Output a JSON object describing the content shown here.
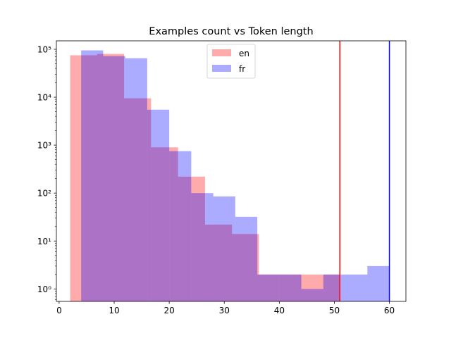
{
  "chart_data": {
    "type": "bar",
    "subtype": "overlapping-histogram",
    "title": "Examples count vs Token length",
    "xlabel": "",
    "ylabel": "",
    "xlim": [
      -0.5,
      63
    ],
    "ylim": [
      0.55,
      150000
    ],
    "yscale": "log",
    "xticks": [
      0,
      10,
      20,
      30,
      40,
      50,
      60
    ],
    "yticks": [
      {
        "value": 1,
        "label": "10⁰"
      },
      {
        "value": 10,
        "label": "10¹"
      },
      {
        "value": 100,
        "label": "10²"
      },
      {
        "value": 1000,
        "label": "10³"
      },
      {
        "value": 10000,
        "label": "10⁴"
      },
      {
        "value": 100000,
        "label": "10⁵"
      }
    ],
    "grid": false,
    "legend_position": "top-center",
    "series": [
      {
        "name": "en",
        "color": "#ff0000",
        "alpha": 0.33,
        "bins": [
          {
            "x0": 2.0,
            "x1": 6.9,
            "value": 75000
          },
          {
            "x0": 6.9,
            "x1": 11.8,
            "value": 80000
          },
          {
            "x0": 11.8,
            "x1": 16.7,
            "value": 9500
          },
          {
            "x0": 16.7,
            "x1": 21.6,
            "value": 900
          },
          {
            "x0": 21.6,
            "x1": 26.5,
            "value": 220
          },
          {
            "x0": 26.5,
            "x1": 31.4,
            "value": 22
          },
          {
            "x0": 31.4,
            "x1": 36.3,
            "value": 14
          },
          {
            "x0": 36.3,
            "x1": 41.2,
            "value": 2
          },
          {
            "x0": 41.2,
            "x1": 46.1,
            "value": 2
          },
          {
            "x0": 46.1,
            "x1": 51.0,
            "value": 2
          }
        ]
      },
      {
        "name": "fr",
        "color": "#0000ff",
        "alpha": 0.33,
        "bins": [
          {
            "x0": 4.0,
            "x1": 8.0,
            "value": 95000
          },
          {
            "x0": 8.0,
            "x1": 12.0,
            "value": 72000
          },
          {
            "x0": 12.0,
            "x1": 16.0,
            "value": 65000
          },
          {
            "x0": 16.0,
            "x1": 20.0,
            "value": 5500
          },
          {
            "x0": 20.0,
            "x1": 24.0,
            "value": 750
          },
          {
            "x0": 24.0,
            "x1": 28.0,
            "value": 100
          },
          {
            "x0": 28.0,
            "x1": 32.0,
            "value": 85
          },
          {
            "x0": 32.0,
            "x1": 36.0,
            "value": 32
          },
          {
            "x0": 36.0,
            "x1": 40.0,
            "value": 2
          },
          {
            "x0": 40.0,
            "x1": 44.0,
            "value": 2
          },
          {
            "x0": 44.0,
            "x1": 48.0,
            "value": 1
          },
          {
            "x0": 48.0,
            "x1": 52.0,
            "value": 2
          },
          {
            "x0": 52.0,
            "x1": 56.0,
            "value": 2
          },
          {
            "x0": 56.0,
            "x1": 60.0,
            "value": 3
          }
        ]
      }
    ],
    "vlines": [
      {
        "x": 51,
        "color": "#ff0000"
      },
      {
        "x": 60,
        "color": "#0000ff"
      }
    ]
  }
}
